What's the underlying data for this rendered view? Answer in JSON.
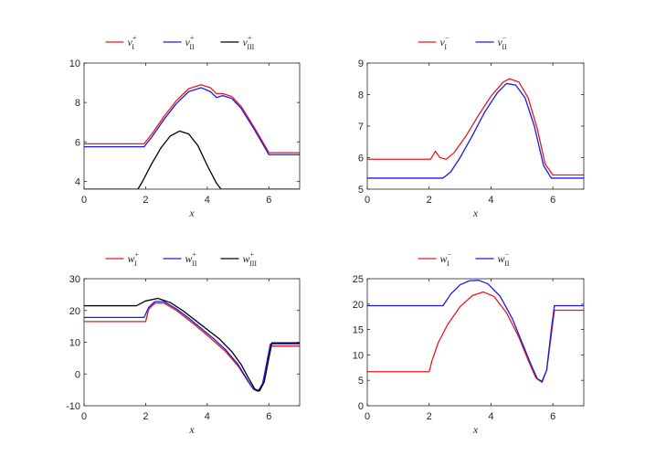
{
  "colors": {
    "red": "#e8191e",
    "blue": "#1a1ae6",
    "black": "#000000",
    "axis": "#262626"
  },
  "chart_data": [
    {
      "type": "line",
      "xlabel": "x",
      "xlim": [
        0,
        7
      ],
      "ylim": [
        3.6,
        10
      ],
      "xticks": [
        "0",
        "2",
        "4",
        "6"
      ],
      "xtick_values": [
        0,
        2,
        4,
        6
      ],
      "yticks": [
        "4",
        "6",
        "8",
        "10"
      ],
      "ytick_values": [
        4,
        6,
        8,
        10
      ],
      "legend_placement": "top-center",
      "series": [
        {
          "name": "v",
          "sub": "I",
          "sup": "+",
          "color": "#e8191e",
          "x": [
            0,
            1.95,
            2.2,
            2.6,
            3.0,
            3.4,
            3.8,
            4.1,
            4.3,
            4.5,
            4.8,
            5.1,
            5.5,
            5.8,
            6.0,
            7.0
          ],
          "y": [
            5.9,
            5.9,
            6.4,
            7.3,
            8.1,
            8.7,
            8.9,
            8.75,
            8.45,
            8.45,
            8.3,
            7.8,
            6.8,
            6.0,
            5.45,
            5.45
          ]
        },
        {
          "name": "v",
          "sub": "II",
          "sup": "+",
          "color": "#1a1ae6",
          "x": [
            0,
            1.95,
            2.2,
            2.6,
            3.0,
            3.4,
            3.8,
            4.1,
            4.3,
            4.5,
            4.8,
            5.1,
            5.5,
            5.8,
            6.0,
            7.0
          ],
          "y": [
            5.75,
            5.75,
            6.25,
            7.15,
            7.95,
            8.55,
            8.75,
            8.55,
            8.25,
            8.35,
            8.2,
            7.7,
            6.7,
            5.9,
            5.35,
            5.35
          ]
        },
        {
          "name": "v",
          "sub": "III",
          "sup": "+",
          "color": "#000000",
          "x": [
            0,
            1.75,
            1.9,
            2.2,
            2.5,
            2.8,
            3.1,
            3.4,
            3.7,
            4.0,
            4.3,
            4.45,
            7.0
          ],
          "y": [
            3.6,
            3.6,
            4.0,
            4.9,
            5.7,
            6.3,
            6.55,
            6.4,
            5.8,
            4.8,
            3.9,
            3.6,
            3.6
          ]
        }
      ]
    },
    {
      "type": "line",
      "xlabel": "x",
      "xlim": [
        0,
        7
      ],
      "ylim": [
        5,
        9
      ],
      "xticks": [
        "0",
        "2",
        "4",
        "6"
      ],
      "xtick_values": [
        0,
        2,
        4,
        6
      ],
      "yticks": [
        "5",
        "6",
        "7",
        "8",
        "9"
      ],
      "ytick_values": [
        5,
        6,
        7,
        8,
        9
      ],
      "legend_placement": "top-center",
      "series": [
        {
          "name": "v",
          "sub": "I",
          "sup": "−",
          "color": "#e8191e",
          "x": [
            0,
            2.05,
            2.2,
            2.35,
            2.55,
            2.8,
            3.2,
            3.6,
            4.0,
            4.4,
            4.6,
            4.9,
            5.2,
            5.5,
            5.75,
            6.0,
            7.0
          ],
          "y": [
            5.95,
            5.95,
            6.2,
            6.0,
            5.95,
            6.15,
            6.7,
            7.35,
            7.95,
            8.4,
            8.5,
            8.4,
            7.9,
            6.9,
            5.8,
            5.45,
            5.45
          ]
        },
        {
          "name": "v",
          "sub": "II",
          "sup": "−",
          "color": "#1a1ae6",
          "x": [
            0,
            2.45,
            2.7,
            3.0,
            3.4,
            3.8,
            4.2,
            4.5,
            4.8,
            5.1,
            5.4,
            5.7,
            5.95,
            7.0
          ],
          "y": [
            5.35,
            5.35,
            5.55,
            6.0,
            6.7,
            7.45,
            8.05,
            8.35,
            8.3,
            7.9,
            7.0,
            5.75,
            5.35,
            5.35
          ]
        }
      ]
    },
    {
      "type": "line",
      "xlabel": "x",
      "xlim": [
        0,
        7
      ],
      "ylim": [
        -10,
        30
      ],
      "xticks": [
        "0",
        "2",
        "4",
        "6"
      ],
      "xtick_values": [
        0,
        2,
        4,
        6
      ],
      "yticks": [
        "-10",
        "0",
        "10",
        "20",
        "30"
      ],
      "ytick_values": [
        -10,
        0,
        10,
        20,
        30
      ],
      "legend_placement": "top-center",
      "series": [
        {
          "name": "w",
          "sub": "I",
          "sup": "+",
          "color": "#e8191e",
          "x": [
            0,
            2.0,
            2.1,
            2.3,
            2.6,
            3.0,
            3.4,
            3.8,
            4.2,
            4.6,
            5.0,
            5.3,
            5.5,
            5.65,
            5.8,
            5.95,
            6.05,
            7.0
          ],
          "y": [
            16.5,
            16.5,
            20.5,
            22.3,
            22.3,
            20.0,
            17.0,
            13.8,
            10.5,
            7.0,
            2.5,
            -2.0,
            -4.8,
            -5.5,
            -3.0,
            4.0,
            8.8,
            8.8
          ]
        },
        {
          "name": "w",
          "sub": "II",
          "sup": "+",
          "color": "#1a1ae6",
          "x": [
            0,
            1.95,
            2.1,
            2.3,
            2.6,
            3.0,
            3.4,
            3.8,
            4.2,
            4.6,
            5.0,
            5.3,
            5.5,
            5.65,
            5.8,
            5.95,
            6.05,
            7.0
          ],
          "y": [
            17.8,
            17.8,
            21.0,
            22.8,
            22.8,
            20.5,
            17.6,
            14.4,
            11.2,
            7.6,
            3.0,
            -1.8,
            -4.7,
            -5.4,
            -3.0,
            4.5,
            9.5,
            9.5
          ]
        },
        {
          "name": "w",
          "sub": "III",
          "sup": "+",
          "color": "#000000",
          "x": [
            0,
            1.7,
            2.0,
            2.4,
            2.8,
            3.2,
            3.6,
            4.0,
            4.4,
            4.8,
            5.1,
            5.35,
            5.55,
            5.7,
            5.85,
            6.0,
            6.1,
            7.0
          ],
          "y": [
            21.5,
            21.5,
            23.0,
            23.8,
            22.5,
            20.0,
            17.0,
            14.0,
            11.0,
            7.0,
            3.0,
            -1.5,
            -4.8,
            -5.3,
            -2.5,
            5.0,
            9.8,
            9.8
          ]
        }
      ]
    },
    {
      "type": "line",
      "xlabel": "x",
      "xlim": [
        0,
        7
      ],
      "ylim": [
        0,
        25
      ],
      "xticks": [
        "0",
        "2",
        "4",
        "6"
      ],
      "xtick_values": [
        0,
        2,
        4,
        6
      ],
      "yticks": [
        "0",
        "5",
        "10",
        "15",
        "20",
        "25"
      ],
      "ytick_values": [
        0,
        5,
        10,
        15,
        20,
        25
      ],
      "legend_placement": "top-center",
      "series": [
        {
          "name": "w",
          "sub": "I",
          "sup": "−",
          "color": "#e8191e",
          "x": [
            0,
            2.0,
            2.1,
            2.3,
            2.6,
            3.0,
            3.4,
            3.75,
            4.1,
            4.5,
            4.9,
            5.2,
            5.45,
            5.65,
            5.8,
            5.95,
            6.05,
            7.0
          ],
          "y": [
            6.7,
            6.7,
            9.0,
            12.5,
            16.0,
            19.5,
            21.7,
            22.4,
            21.5,
            18.3,
            13.5,
            9.0,
            5.5,
            4.6,
            7.0,
            14.0,
            18.8,
            18.8
          ]
        },
        {
          "name": "w",
          "sub": "II",
          "sup": "−",
          "color": "#1a1ae6",
          "x": [
            0,
            2.45,
            2.7,
            3.0,
            3.3,
            3.6,
            3.9,
            4.3,
            4.7,
            5.0,
            5.3,
            5.5,
            5.65,
            5.8,
            5.95,
            6.05,
            7.0
          ],
          "y": [
            19.7,
            19.7,
            22.0,
            23.8,
            24.6,
            24.7,
            24.0,
            21.5,
            17.0,
            12.5,
            8.0,
            5.3,
            4.8,
            7.0,
            15.0,
            19.7,
            19.7
          ]
        }
      ]
    }
  ]
}
